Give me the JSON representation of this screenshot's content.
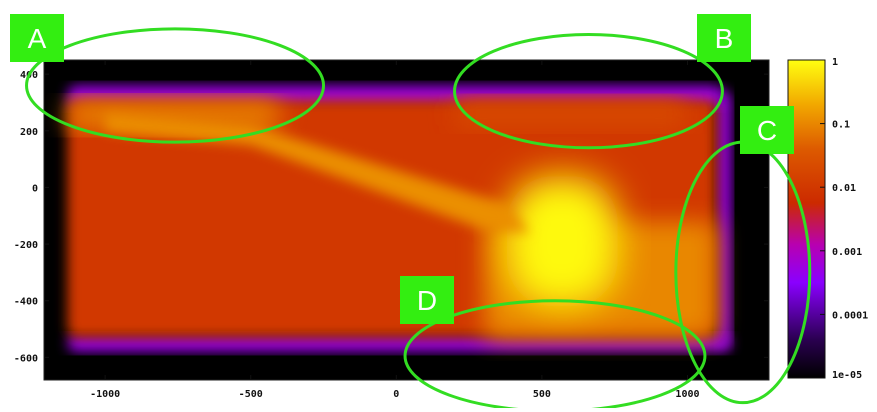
{
  "chart_data": {
    "type": "heatmap",
    "x_ticks": [
      "-1000",
      "-500",
      "0",
      "500",
      "1000"
    ],
    "x_tick_values": [
      -1000,
      -500,
      0,
      500,
      1000
    ],
    "y_ticks": [
      "400",
      "200",
      "0",
      "-200",
      "-400",
      "-600"
    ],
    "y_tick_values": [
      400,
      200,
      0,
      -200,
      -400,
      -600
    ],
    "xlim": [
      -1210,
      1280
    ],
    "ylim": [
      -680,
      450
    ],
    "colorbar": {
      "scale": "log",
      "labels": [
        "1",
        "0.1",
        "0.01",
        "0.001",
        "0.0001",
        "1e-05"
      ],
      "range": [
        1e-05,
        1
      ]
    },
    "grid": false,
    "legend": "none",
    "background_color": "#000000",
    "palette": [
      "#000000",
      "#2a0040",
      "#7a00ff",
      "#a000c0",
      "#cc2800",
      "#d85000",
      "#ee9a00",
      "#ffcc00",
      "#ffff10"
    ],
    "regions": [
      {
        "name": "upper-band",
        "x": [
          -1130,
          1120
        ],
        "y": [
          280,
          360
        ],
        "value": 0.0005
      },
      {
        "name": "lower-band",
        "x": [
          -1130,
          1150
        ],
        "y": [
          -580,
          -520
        ],
        "value": 0.0005
      },
      {
        "name": "right-band",
        "x": [
          1100,
          1150
        ],
        "y": [
          -560,
          340
        ],
        "value": 0.0005
      },
      {
        "name": "main-body",
        "x": [
          -1130,
          1100
        ],
        "y": [
          -530,
          310
        ],
        "value": 0.01
      },
      {
        "name": "left-upper-plateau",
        "x": [
          -1130,
          -400
        ],
        "y": [
          200,
          310
        ],
        "value": 0.08
      },
      {
        "name": "top-right-strip",
        "x": [
          200,
          1000
        ],
        "y": [
          210,
          310
        ],
        "value": 0.02
      },
      {
        "name": "bottom-right-plateau",
        "x": [
          300,
          1100
        ],
        "y": [
          -530,
          -120
        ],
        "value": 0.1
      },
      {
        "name": "hot-spot",
        "x": [
          380,
          760
        ],
        "y": [
          -420,
          40
        ],
        "value": 0.9
      }
    ],
    "annotations": [
      {
        "label": "A",
        "x_range": [
          -1270,
          -250
        ],
        "y_range": [
          160,
          560
        ]
      },
      {
        "label": "B",
        "x_range": [
          200,
          1120
        ],
        "y_range": [
          140,
          540
        ]
      },
      {
        "label": "C",
        "x_range": [
          960,
          1420
        ],
        "y_range": [
          -760,
          160
        ]
      },
      {
        "label": "D",
        "x_range": [
          30,
          1060
        ],
        "y_range": [
          -790,
          -400
        ]
      }
    ]
  }
}
